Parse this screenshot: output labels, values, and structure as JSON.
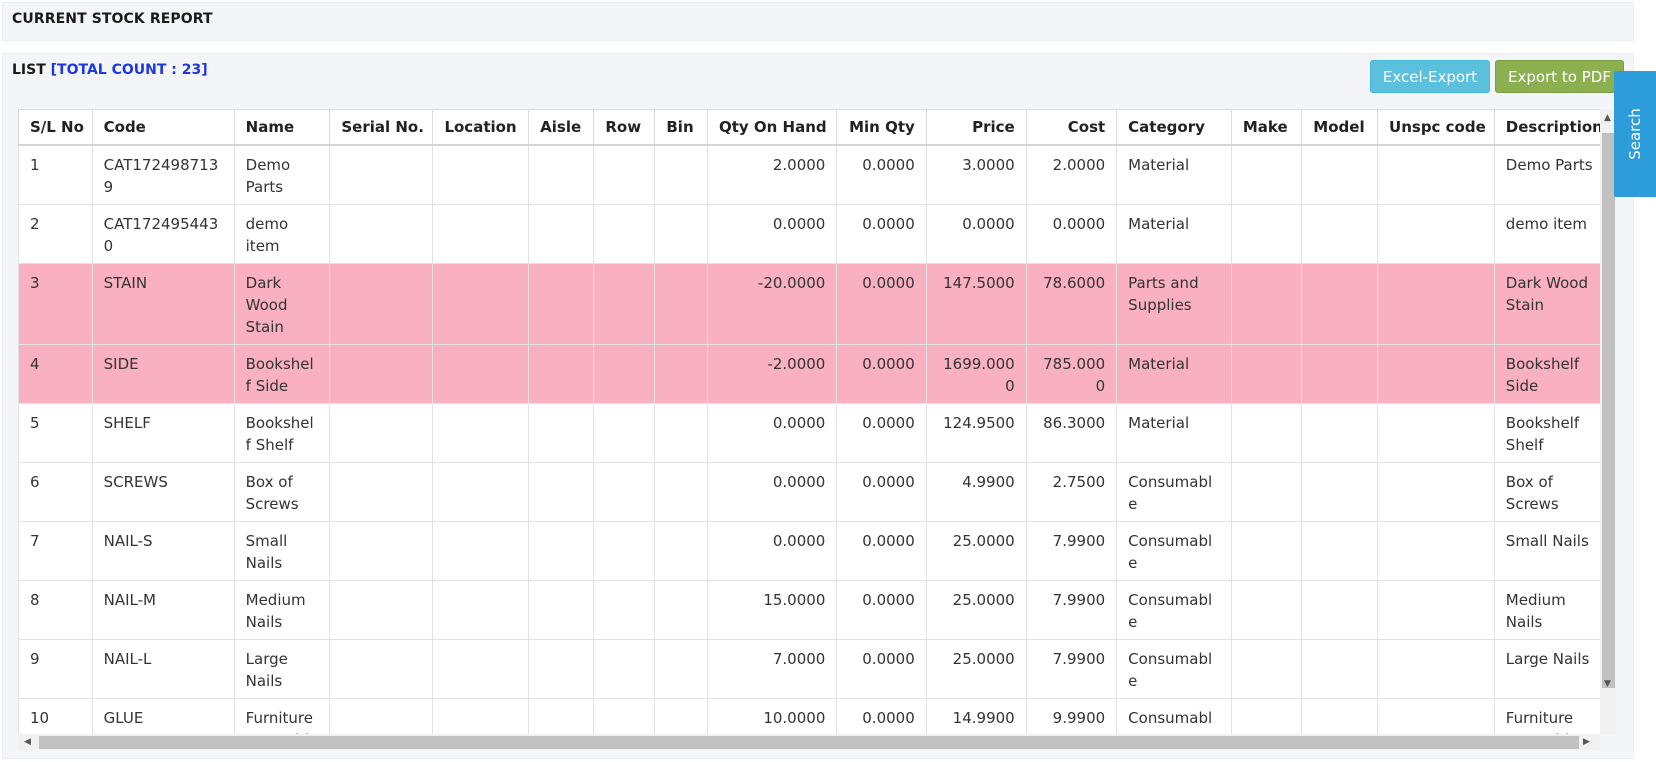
{
  "page": {
    "title": "CURRENT STOCK REPORT",
    "list_label": "LIST",
    "total_count_label": "[TOTAL COUNT : 23]",
    "excel_button": "Excel-Export",
    "pdf_button": "Export to PDF",
    "search_tab": "Search"
  },
  "colors": {
    "negative_row": "#f9b0c1",
    "excel_button": "#5bc0de",
    "pdf_button": "#8cb050",
    "search_tab": "#2d9cdb",
    "total_count": "#1d38e0"
  },
  "table": {
    "columns": [
      "S/L No",
      "Code",
      "Name",
      "Serial No.",
      "Location",
      "Aisle",
      "Row",
      "Bin",
      "Qty On Hand",
      "Min Qty",
      "Price",
      "Cost",
      "Category",
      "Make",
      "Model",
      "Unspc code",
      "Description"
    ],
    "rows": [
      {
        "sl": "1",
        "code": "CAT1724987139",
        "name": "Demo Parts",
        "serial": "",
        "location": "",
        "aisle": "",
        "row": "",
        "bin": "",
        "qty": "2.0000",
        "min_qty": "0.0000",
        "price": "3.0000",
        "cost": "2.0000",
        "category": "Material",
        "make": "",
        "model": "",
        "unspc": "",
        "description": "Demo Parts",
        "highlight": false
      },
      {
        "sl": "2",
        "code": "CAT1724954430",
        "name": "demo item",
        "serial": "",
        "location": "",
        "aisle": "",
        "row": "",
        "bin": "",
        "qty": "0.0000",
        "min_qty": "0.0000",
        "price": "0.0000",
        "cost": "0.0000",
        "category": "Material",
        "make": "",
        "model": "",
        "unspc": "",
        "description": "demo item",
        "highlight": false
      },
      {
        "sl": "3",
        "code": "STAIN",
        "name": "Dark Wood Stain",
        "serial": "",
        "location": "",
        "aisle": "",
        "row": "",
        "bin": "",
        "qty": "-20.0000",
        "min_qty": "0.0000",
        "price": "147.5000",
        "cost": "78.6000",
        "category": "Parts and Supplies",
        "make": "",
        "model": "",
        "unspc": "",
        "description": "Dark Wood Stain",
        "highlight": true
      },
      {
        "sl": "4",
        "code": "SIDE",
        "name": "Bookshelf Side",
        "serial": "",
        "location": "",
        "aisle": "",
        "row": "",
        "bin": "",
        "qty": "-2.0000",
        "min_qty": "0.0000",
        "price": "1699.0000",
        "cost": "785.0000",
        "category": "Material",
        "make": "",
        "model": "",
        "unspc": "",
        "description": "Bookshelf Side",
        "highlight": true
      },
      {
        "sl": "5",
        "code": "SHELF",
        "name": "Bookshelf Shelf",
        "serial": "",
        "location": "",
        "aisle": "",
        "row": "",
        "bin": "",
        "qty": "0.0000",
        "min_qty": "0.0000",
        "price": "124.9500",
        "cost": "86.3000",
        "category": "Material",
        "make": "",
        "model": "",
        "unspc": "",
        "description": "Bookshelf Shelf",
        "highlight": false
      },
      {
        "sl": "6",
        "code": "SCREWS",
        "name": "Box of Screws",
        "serial": "",
        "location": "",
        "aisle": "",
        "row": "",
        "bin": "",
        "qty": "0.0000",
        "min_qty": "0.0000",
        "price": "4.9900",
        "cost": "2.7500",
        "category": "Consumable",
        "make": "",
        "model": "",
        "unspc": "",
        "description": "Box of Screws",
        "highlight": false
      },
      {
        "sl": "7",
        "code": "NAIL-S",
        "name": "Small Nails",
        "serial": "",
        "location": "",
        "aisle": "",
        "row": "",
        "bin": "",
        "qty": "0.0000",
        "min_qty": "0.0000",
        "price": "25.0000",
        "cost": "7.9900",
        "category": "Consumable",
        "make": "",
        "model": "",
        "unspc": "",
        "description": "Small Nails",
        "highlight": false
      },
      {
        "sl": "8",
        "code": "NAIL-M",
        "name": "Medium Nails",
        "serial": "",
        "location": "",
        "aisle": "",
        "row": "",
        "bin": "",
        "qty": "15.0000",
        "min_qty": "0.0000",
        "price": "25.0000",
        "cost": "7.9900",
        "category": "Consumable",
        "make": "",
        "model": "",
        "unspc": "",
        "description": "Medium Nails",
        "highlight": false
      },
      {
        "sl": "9",
        "code": "NAIL-L",
        "name": "Large Nails",
        "serial": "",
        "location": "",
        "aisle": "",
        "row": "",
        "bin": "",
        "qty": "7.0000",
        "min_qty": "0.0000",
        "price": "25.0000",
        "cost": "7.9900",
        "category": "Consumable",
        "make": "",
        "model": "",
        "unspc": "",
        "description": "Large Nails",
        "highlight": false
      },
      {
        "sl": "10",
        "code": "GLUE",
        "name": "Furniture Assembly",
        "serial": "",
        "location": "",
        "aisle": "",
        "row": "",
        "bin": "",
        "qty": "10.0000",
        "min_qty": "0.0000",
        "price": "14.9900",
        "cost": "9.9900",
        "category": "Consumable",
        "make": "",
        "model": "",
        "unspc": "",
        "description": "Furniture Assembly",
        "highlight": false
      }
    ]
  }
}
